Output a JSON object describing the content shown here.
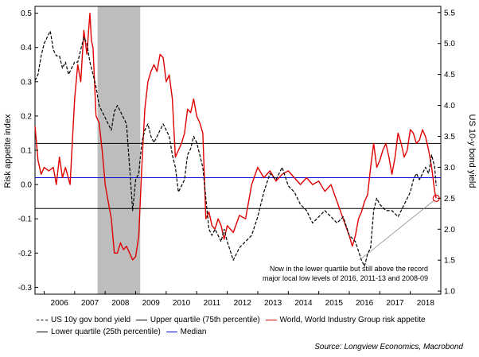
{
  "chart_data": {
    "type": "line",
    "ylabel": "Risk appetite index",
    "y2label": "US 10-y bond yield",
    "ylim": [
      -0.32,
      0.52
    ],
    "y2lim": [
      0.95,
      5.6
    ],
    "yticks": [
      "0.5",
      "0.4",
      "0.3",
      "0.2",
      "0.1",
      "0.0",
      "-0.1",
      "-0.2",
      "-0.3"
    ],
    "y2ticks": [
      "5.5",
      "5.0",
      "4.5",
      "4.0",
      "3.5",
      "3.0",
      "2.5",
      "2.0",
      "1.5",
      "1.0"
    ],
    "xticks": [
      "2006",
      "2007",
      "2008",
      "2009",
      "2010",
      "2011",
      "2012",
      "2013",
      "2014",
      "2015",
      "2016",
      "2017",
      "2018"
    ],
    "xlim": [
      2005.7,
      2019.0
    ],
    "recession_shading": [
      2007.75,
      2009.15
    ],
    "hlines": [
      {
        "name": "Upper quartile (75th percentile)",
        "value": 0.12,
        "color": "#000000"
      },
      {
        "name": "Median",
        "value": 0.02,
        "color": "#0000dd"
      },
      {
        "name": "Lower quartile (25th percentile)",
        "value": -0.07,
        "color": "#000000"
      }
    ],
    "series": [
      {
        "name": "World, World Industry Group risk appetite",
        "axis": "left",
        "color": "#e00000",
        "x": [
          2005.7,
          2005.8,
          2005.9,
          2006.0,
          2006.15,
          2006.3,
          2006.4,
          2006.5,
          2006.6,
          2006.7,
          2006.85,
          2007.0,
          2007.1,
          2007.2,
          2007.3,
          2007.4,
          2007.5,
          2007.55,
          2007.6,
          2007.7,
          2007.8,
          2007.9,
          2008.0,
          2008.1,
          2008.2,
          2008.3,
          2008.4,
          2008.5,
          2008.6,
          2008.7,
          2008.8,
          2008.9,
          2009.0,
          2009.1,
          2009.2,
          2009.3,
          2009.4,
          2009.5,
          2009.6,
          2009.7,
          2009.8,
          2009.9,
          2010.0,
          2010.1,
          2010.2,
          2010.3,
          2010.4,
          2010.5,
          2010.6,
          2010.7,
          2010.8,
          2010.9,
          2011.0,
          2011.1,
          2011.2,
          2011.3,
          2011.4,
          2011.5,
          2011.6,
          2011.7,
          2011.8,
          2011.9,
          2012.0,
          2012.2,
          2012.4,
          2012.6,
          2012.8,
          2013.0,
          2013.2,
          2013.4,
          2013.6,
          2013.8,
          2014.0,
          2014.2,
          2014.4,
          2014.6,
          2014.8,
          2015.0,
          2015.2,
          2015.4,
          2015.6,
          2015.8,
          2016.0,
          2016.1,
          2016.2,
          2016.3,
          2016.4,
          2016.5,
          2016.6,
          2016.7,
          2016.8,
          2016.9,
          2017.0,
          2017.1,
          2017.2,
          2017.3,
          2017.4,
          2017.5,
          2017.6,
          2017.7,
          2017.8,
          2017.9,
          2018.0,
          2018.1,
          2018.2,
          2018.3,
          2018.4,
          2018.5,
          2018.6,
          2018.7,
          2018.8,
          2018.85
        ],
        "y": [
          0.17,
          0.07,
          0.03,
          0.05,
          0.04,
          0.05,
          0.0,
          0.08,
          0.02,
          0.05,
          0.0,
          0.25,
          0.35,
          0.3,
          0.45,
          0.38,
          0.5,
          0.42,
          0.4,
          0.2,
          0.18,
          0.1,
          0.0,
          -0.05,
          -0.1,
          -0.2,
          -0.2,
          -0.17,
          -0.19,
          -0.18,
          -0.2,
          -0.22,
          -0.21,
          -0.15,
          0.05,
          0.22,
          0.3,
          0.33,
          0.35,
          0.33,
          0.38,
          0.37,
          0.3,
          0.32,
          0.25,
          0.08,
          0.1,
          0.12,
          0.15,
          0.22,
          0.21,
          0.25,
          0.2,
          0.18,
          0.15,
          -0.1,
          -0.08,
          -0.12,
          -0.13,
          -0.1,
          -0.12,
          -0.16,
          -0.12,
          -0.14,
          -0.09,
          -0.1,
          0.0,
          0.05,
          0.02,
          0.04,
          0.01,
          0.03,
          0.04,
          0.02,
          0.0,
          0.02,
          0.0,
          0.01,
          -0.02,
          0.0,
          -0.05,
          -0.1,
          -0.15,
          -0.18,
          -0.15,
          -0.1,
          -0.08,
          -0.05,
          -0.03,
          0.05,
          0.12,
          0.05,
          0.07,
          0.1,
          0.12,
          0.08,
          0.03,
          0.08,
          0.15,
          0.12,
          0.08,
          0.1,
          0.16,
          0.15,
          0.12,
          0.13,
          0.16,
          0.14,
          0.1,
          0.05,
          -0.02,
          -0.04
        ]
      },
      {
        "name": "US 10y gov bond yield",
        "axis": "right",
        "color": "#000000",
        "x": [
          2005.7,
          2005.8,
          2005.9,
          2006.0,
          2006.1,
          2006.2,
          2006.3,
          2006.4,
          2006.5,
          2006.6,
          2006.7,
          2006.8,
          2006.9,
          2007.0,
          2007.1,
          2007.2,
          2007.3,
          2007.4,
          2007.5,
          2007.6,
          2007.7,
          2007.8,
          2007.9,
          2008.0,
          2008.1,
          2008.2,
          2008.3,
          2008.4,
          2008.5,
          2008.6,
          2008.7,
          2008.8,
          2008.9,
          2009.0,
          2009.1,
          2009.2,
          2009.3,
          2009.4,
          2009.5,
          2009.6,
          2009.7,
          2009.8,
          2009.9,
          2010.0,
          2010.1,
          2010.2,
          2010.3,
          2010.4,
          2010.5,
          2010.6,
          2010.7,
          2010.8,
          2010.9,
          2011.0,
          2011.1,
          2011.2,
          2011.3,
          2011.4,
          2011.5,
          2011.6,
          2011.7,
          2011.8,
          2011.9,
          2012.0,
          2012.2,
          2012.4,
          2012.6,
          2012.8,
          2013.0,
          2013.2,
          2013.4,
          2013.6,
          2013.8,
          2014.0,
          2014.2,
          2014.4,
          2014.6,
          2014.8,
          2015.0,
          2015.2,
          2015.4,
          2015.6,
          2015.8,
          2016.0,
          2016.2,
          2016.4,
          2016.5,
          2016.6,
          2016.7,
          2016.8,
          2016.9,
          2017.0,
          2017.2,
          2017.4,
          2017.6,
          2017.8,
          2018.0,
          2018.1,
          2018.2,
          2018.3,
          2018.4,
          2018.5,
          2018.6,
          2018.7,
          2018.8,
          2018.85
        ],
        "y": [
          4.4,
          4.5,
          4.8,
          5.0,
          5.1,
          5.2,
          4.9,
          4.8,
          4.8,
          4.6,
          4.7,
          4.5,
          4.6,
          4.7,
          4.7,
          4.9,
          5.1,
          5.0,
          4.7,
          4.5,
          4.3,
          4.0,
          3.9,
          3.8,
          3.7,
          3.6,
          3.9,
          4.0,
          3.9,
          3.8,
          3.7,
          3.0,
          2.3,
          2.8,
          2.9,
          3.4,
          3.6,
          3.7,
          3.5,
          3.4,
          3.5,
          3.6,
          3.7,
          3.6,
          3.5,
          3.2,
          3.0,
          2.6,
          2.7,
          2.8,
          3.2,
          3.3,
          3.5,
          3.4,
          3.2,
          3.0,
          2.5,
          2.0,
          1.9,
          2.0,
          1.9,
          1.8,
          2.0,
          1.8,
          1.5,
          1.7,
          1.8,
          1.9,
          2.2,
          2.6,
          2.9,
          2.8,
          3.0,
          2.7,
          2.6,
          2.4,
          2.3,
          2.1,
          2.2,
          2.3,
          2.2,
          2.1,
          2.2,
          1.9,
          1.8,
          1.5,
          1.4,
          1.6,
          1.7,
          2.3,
          2.5,
          2.4,
          2.3,
          2.3,
          2.2,
          2.4,
          2.6,
          2.8,
          2.9,
          2.8,
          2.9,
          3.0,
          2.9,
          3.2,
          3.0,
          2.7
        ]
      }
    ],
    "annotation": {
      "text_line1": "Now in the lower quartile but still above the record",
      "text_line2": "major local low levels of 2016, 2011-13 and 2008-09",
      "x": 2018.85,
      "y": -0.04
    }
  },
  "legend": {
    "row1": [
      "US 10y gov bond yield",
      "Upper quartile (75th percentile)",
      "World, World Industry Group risk appetite"
    ],
    "row2": [
      "Lower quartile (25th percentile)",
      "Median"
    ]
  },
  "source": "Source: Longview Economics, Macrobond"
}
